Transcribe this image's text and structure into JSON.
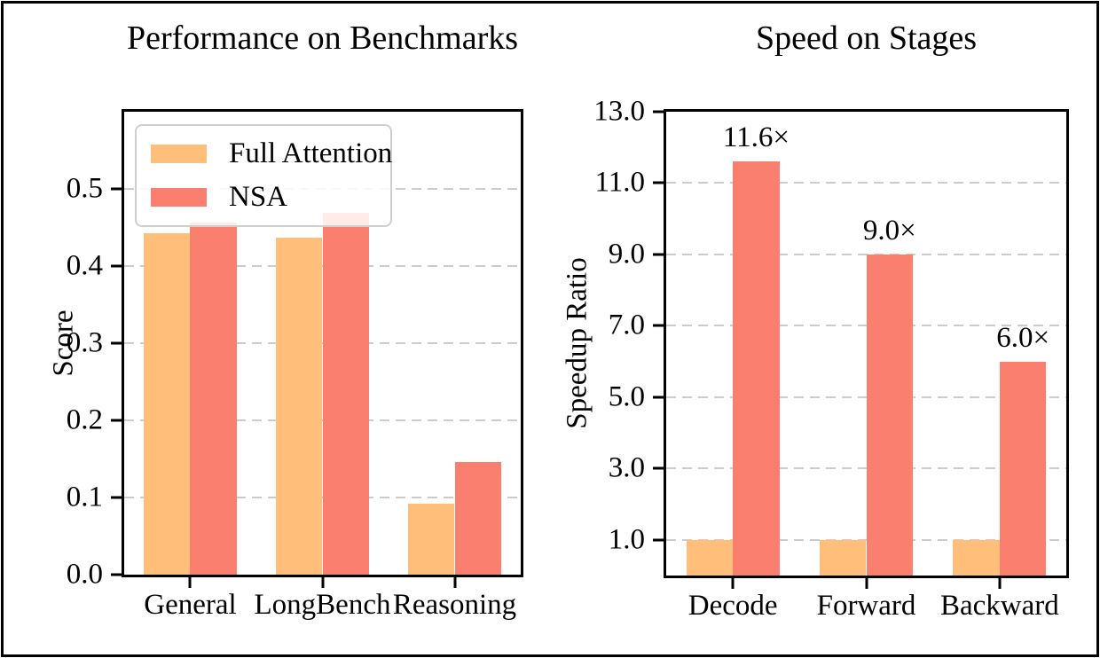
{
  "colors": {
    "full_attention": "#FFBE7A",
    "nsa": "#FA7F6F",
    "grid": "#cccccc",
    "axis": "#000000",
    "background": "#ffffff"
  },
  "chart_data": [
    {
      "type": "bar",
      "title": "Performance on Benchmarks",
      "xlabel": "",
      "ylabel": "Score",
      "categories": [
        "General",
        "LongBench",
        "Reasoning"
      ],
      "series": [
        {
          "name": "Full Attention",
          "color": "#FFBE7A",
          "values": [
            0.443,
            0.437,
            0.092
          ]
        },
        {
          "name": "NSA",
          "color": "#FA7F6F",
          "values": [
            0.456,
            0.469,
            0.146
          ]
        }
      ],
      "ylim": [
        0,
        0.6
      ],
      "ytick_values": [
        0.0,
        0.1,
        0.2,
        0.3,
        0.4,
        0.5
      ],
      "ytick_labels": [
        "0.0",
        "0.1",
        "0.2",
        "0.3",
        "0.4",
        "0.5"
      ],
      "grid": "horizontal-dashed",
      "legend_position": "upper-left"
    },
    {
      "type": "bar",
      "title": "Speed on Stages",
      "xlabel": "",
      "ylabel": "Speedup Ratio",
      "categories": [
        "Decode",
        "Forward",
        "Backward"
      ],
      "series": [
        {
          "name": "Full Attention",
          "color": "#FFBE7A",
          "values": [
            1.0,
            1.0,
            1.0
          ]
        },
        {
          "name": "NSA",
          "color": "#FA7F6F",
          "values": [
            11.6,
            9.0,
            6.0
          ],
          "bar_labels": [
            "11.6×",
            "9.0×",
            "6.0×"
          ]
        }
      ],
      "ylim": [
        0,
        13
      ],
      "ytick_values": [
        1.0,
        3.0,
        5.0,
        7.0,
        9.0,
        11.0,
        13.0
      ],
      "ytick_labels": [
        "1.0",
        "3.0",
        "5.0",
        "7.0",
        "9.0",
        "11.0",
        "13.0"
      ],
      "grid": "horizontal-dashed",
      "legend_position": "none"
    }
  ]
}
